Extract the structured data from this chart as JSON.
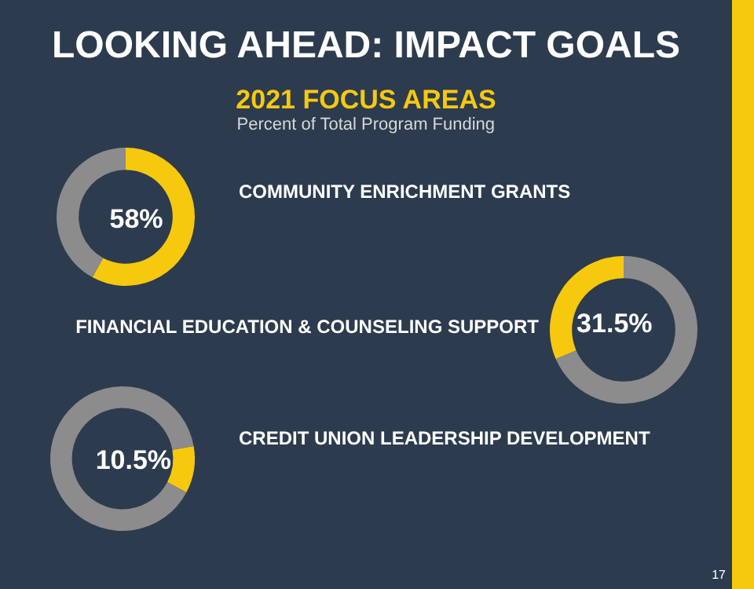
{
  "chart_data": [
    {
      "type": "donut",
      "title": "LOOKING AHEAD: IMPACT GOALS",
      "subtitle": "2021 FOCUS AREAS",
      "annotations": [
        "Percent of Total Program Funding"
      ],
      "categories": [
        "COMMUNITY ENRICHMENT GRANTS",
        null
      ],
      "values": [
        58,
        42
      ],
      "colors": [
        "#f6c90e",
        "#8c8c8c"
      ],
      "value_labels": [
        "58%",
        null
      ],
      "legend": false
    },
    {
      "type": "donut",
      "categories": [
        "FINANCIAL EDUCATION & COUNSELING SUPPORT",
        null
      ],
      "values": [
        31.5,
        68.5
      ],
      "colors": [
        "#f6c90e",
        "#8c8c8c"
      ],
      "value_labels": [
        "31.5%",
        null
      ],
      "legend": false
    },
    {
      "type": "donut",
      "annotations": [
        "17"
      ],
      "categories": [
        "CREDIT UNION LEADERSHIP DEVELOPMENT",
        null
      ],
      "values": [
        10.5,
        89.5
      ],
      "colors": [
        "#f6c90e",
        "#8c8c8c"
      ],
      "value_labels": [
        "10.5%",
        null
      ],
      "legend": false
    }
  ]
}
